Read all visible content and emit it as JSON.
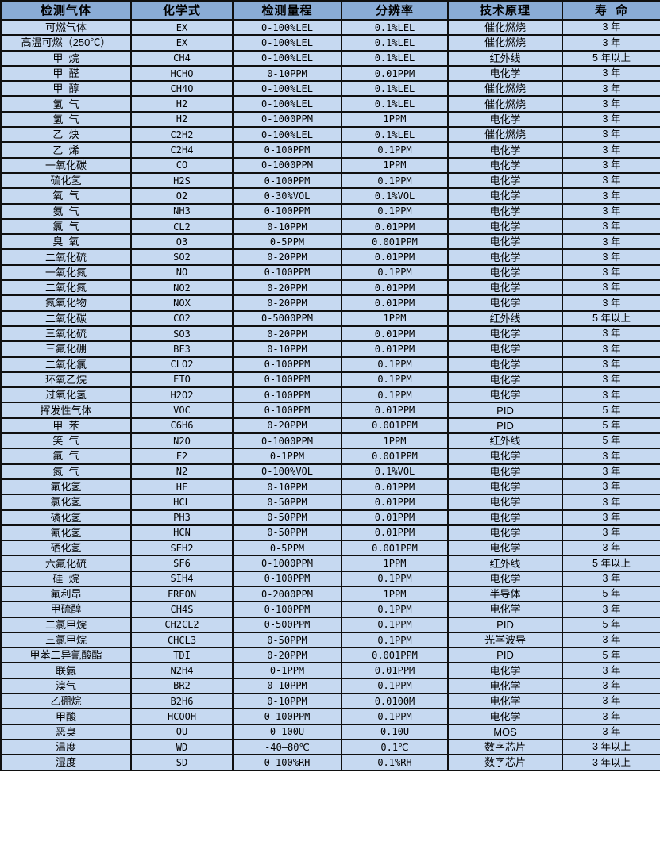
{
  "colors": {
    "header_bg": "#8aacd6",
    "row_bg": "#c6d9f1",
    "border": "#101010"
  },
  "table": {
    "headers": [
      "检测气体",
      "化学式",
      "检测量程",
      "分辨率",
      "技术原理",
      "寿  命"
    ],
    "rows": [
      [
        "可燃气体",
        "EX",
        "0-100%LEL",
        "0.1%LEL",
        "催化燃烧",
        "3 年"
      ],
      [
        "高温可燃（250℃）",
        "EX",
        "0-100%LEL",
        "0.1%LEL",
        "催化燃烧",
        "3 年"
      ],
      [
        "甲  烷",
        "CH4",
        "0-100%LEL",
        "0.1%LEL",
        "红外线",
        "5 年以上"
      ],
      [
        "甲  醛",
        "HCHO",
        "0-10PPM",
        "0.01PPM",
        "电化学",
        "3 年"
      ],
      [
        "甲  醇",
        "CH4O",
        "0-100%LEL",
        "0.1%LEL",
        "催化燃烧",
        "3 年"
      ],
      [
        "氢  气",
        "H2",
        "0-100%LEL",
        "0.1%LEL",
        "催化燃烧",
        "3 年"
      ],
      [
        "氢  气",
        "H2",
        "0-1000PPM",
        "1PPM",
        "电化学",
        "3 年"
      ],
      [
        "乙  炔",
        "C2H2",
        "0-100%LEL",
        "0.1%LEL",
        "催化燃烧",
        "3 年"
      ],
      [
        "乙  烯",
        "C2H4",
        "0-100PPM",
        "0.1PPM",
        "电化学",
        "3 年"
      ],
      [
        "一氧化碳",
        "CO",
        "0-1000PPM",
        "1PPM",
        "电化学",
        "3 年"
      ],
      [
        "硫化氢",
        "H2S",
        "0-100PPM",
        "0.1PPM",
        "电化学",
        "3 年"
      ],
      [
        "氧  气",
        "O2",
        "0-30%VOL",
        "0.1%VOL",
        "电化学",
        "3 年"
      ],
      [
        "氨  气",
        "NH3",
        "0-100PPM",
        "0.1PPM",
        "电化学",
        "3 年"
      ],
      [
        "氯  气",
        "CL2",
        "0-10PPM",
        "0.01PPM",
        "电化学",
        "3 年"
      ],
      [
        "臭  氧",
        "O3",
        "0-5PPM",
        "0.001PPM",
        "电化学",
        "3 年"
      ],
      [
        "二氧化硫",
        "SO2",
        "0-20PPM",
        "0.01PPM",
        "电化学",
        "3 年"
      ],
      [
        "一氧化氮",
        "NO",
        "0-100PPM",
        "0.1PPM",
        "电化学",
        "3 年"
      ],
      [
        "二氧化氮",
        "NO2",
        "0-20PPM",
        "0.01PPM",
        "电化学",
        "3 年"
      ],
      [
        "氮氧化物",
        "NOX",
        "0-20PPM",
        "0.01PPM",
        "电化学",
        "3 年"
      ],
      [
        "二氧化碳",
        "CO2",
        "0-5000PPM",
        "1PPM",
        "红外线",
        "5 年以上"
      ],
      [
        "三氧化硫",
        "SO3",
        "0-20PPM",
        "0.01PPM",
        "电化学",
        "3 年"
      ],
      [
        "三氟化硼",
        "BF3",
        "0-10PPM",
        "0.01PPM",
        "电化学",
        "3 年"
      ],
      [
        "二氧化氯",
        "CLO2",
        "0-100PPM",
        "0.1PPM",
        "电化学",
        "3 年"
      ],
      [
        "环氧乙烷",
        "ETO",
        "0-100PPM",
        "0.1PPM",
        "电化学",
        "3 年"
      ],
      [
        "过氧化氢",
        "H2O2",
        "0-100PPM",
        "0.1PPM",
        "电化学",
        "3 年"
      ],
      [
        "挥发性气体",
        "VOC",
        "0-100PPM",
        "0.01PPM",
        "PID",
        "5 年"
      ],
      [
        "甲  苯",
        "C6H6",
        "0-20PPM",
        "0.001PPM",
        "PID",
        "5 年"
      ],
      [
        "笑  气",
        "N2O",
        "0-1000PPM",
        "1PPM",
        "红外线",
        "5 年"
      ],
      [
        "氟  气",
        "F2",
        "0-1PPM",
        "0.001PPM",
        "电化学",
        "3 年"
      ],
      [
        "氮  气",
        "N2",
        "0-100%VOL",
        "0.1%VOL",
        "电化学",
        "3 年"
      ],
      [
        "氟化氢",
        "HF",
        "0-10PPM",
        "0.01PPM",
        "电化学",
        "3 年"
      ],
      [
        "氯化氢",
        "HCL",
        "0-50PPM",
        "0.01PPM",
        "电化学",
        "3 年"
      ],
      [
        "磷化氢",
        "PH3",
        "0-50PPM",
        "0.01PPM",
        "电化学",
        "3 年"
      ],
      [
        "氰化氢",
        "HCN",
        "0-50PPM",
        "0.01PPM",
        "电化学",
        "3 年"
      ],
      [
        "硒化氢",
        "SEH2",
        "0-5PPM",
        "0.001PPM",
        "电化学",
        "3 年"
      ],
      [
        "六氟化硫",
        "SF6",
        "0-1000PPM",
        "1PPM",
        "红外线",
        "5 年以上"
      ],
      [
        "硅  烷",
        "SIH4",
        "0-100PPM",
        "0.1PPM",
        "电化学",
        "3 年"
      ],
      [
        "氟利昂",
        "FREON",
        "0-2000PPM",
        "1PPM",
        "半导体",
        "5 年"
      ],
      [
        "甲硫醇",
        "CH4S",
        "0-100PPM",
        "0.1PPM",
        "电化学",
        "3 年"
      ],
      [
        "二氯甲烷",
        "CH2CL2",
        "0-500PPM",
        "0.1PPM",
        "PID",
        "5 年"
      ],
      [
        "三氯甲烷",
        "CHCL3",
        "0-50PPM",
        "0.1PPM",
        "光学波导",
        "3 年"
      ],
      [
        "甲苯二异氰酸酯",
        "TDI",
        "0-20PPM",
        "0.001PPM",
        "PID",
        "5 年"
      ],
      [
        "联氨",
        "N2H4",
        "0-1PPM",
        "0.01PPM",
        "电化学",
        "3 年"
      ],
      [
        "溴气",
        "BR2",
        "0-10PPM",
        "0.1PPM",
        "电化学",
        "3 年"
      ],
      [
        "乙硼烷",
        "B2H6",
        "0-10PPM",
        "0.0100M",
        "电化学",
        "3 年"
      ],
      [
        "甲酸",
        "HCOOH",
        "0-100PPM",
        "0.1PPM",
        "电化学",
        "3 年"
      ],
      [
        "恶臭",
        "OU",
        "0-100U",
        "0.10U",
        "MOS",
        "3 年"
      ],
      [
        "温度",
        "WD",
        "-40—80℃",
        "0.1℃",
        "数字芯片",
        "3 年以上"
      ],
      [
        "湿度",
        "SD",
        "0-100%RH",
        "0.1%RH",
        "数字芯片",
        "3 年以上"
      ]
    ]
  }
}
